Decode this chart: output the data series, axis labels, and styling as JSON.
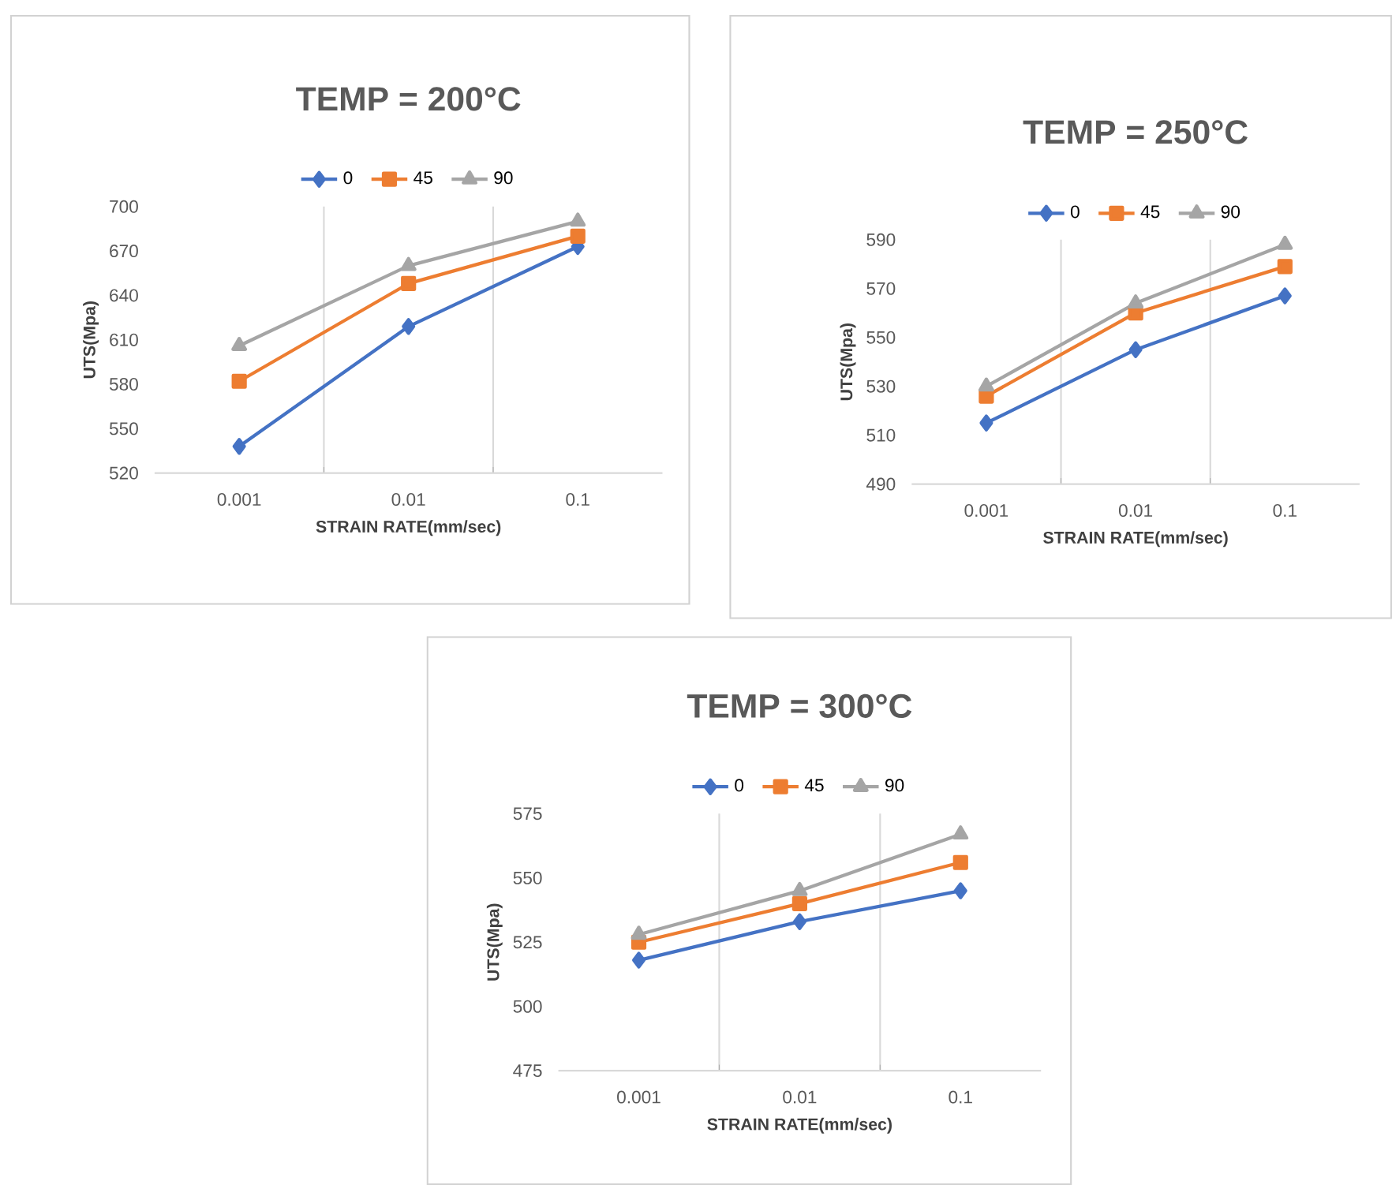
{
  "chart_data": [
    {
      "type": "line",
      "title": "TEMP = 200°C",
      "xlabel": "STRAIN RATE(mm/sec)",
      "ylabel": "UTS(Mpa)",
      "categories": [
        "0.001",
        "0.01",
        "0.1"
      ],
      "ylim": [
        520,
        700
      ],
      "yticks": [
        520,
        550,
        580,
        610,
        640,
        670,
        700
      ],
      "grid": "x",
      "legend": "top",
      "line_style": "solid",
      "series": [
        {
          "name": "0",
          "color": "#4472c4",
          "marker": "diamond",
          "values": [
            538,
            619,
            673
          ]
        },
        {
          "name": "45",
          "color": "#ed7d31",
          "marker": "square",
          "values": [
            582,
            648,
            680
          ]
        },
        {
          "name": "90",
          "color": "#a5a5a5",
          "marker": "triangle",
          "values": [
            606,
            660,
            690
          ]
        }
      ]
    },
    {
      "type": "line",
      "title": "TEMP = 250°C",
      "xlabel": "STRAIN RATE(mm/sec)",
      "ylabel": "UTS(Mpa)",
      "categories": [
        "0.001",
        "0.01",
        "0.1"
      ],
      "ylim": [
        490,
        590
      ],
      "yticks": [
        490,
        510,
        530,
        550,
        570,
        590
      ],
      "grid": "x",
      "legend": "top",
      "line_style": "solid",
      "series": [
        {
          "name": "0",
          "color": "#4472c4",
          "marker": "diamond",
          "values": [
            515,
            545,
            567
          ]
        },
        {
          "name": "45",
          "color": "#ed7d31",
          "marker": "square",
          "values": [
            526,
            560,
            579
          ]
        },
        {
          "name": "90",
          "color": "#a5a5a5",
          "marker": "triangle",
          "values": [
            530,
            564,
            588
          ]
        }
      ]
    },
    {
      "type": "line",
      "title": "TEMP = 300°C",
      "xlabel": "STRAIN RATE(mm/sec)",
      "ylabel": "UTS(Mpa)",
      "categories": [
        "0.001",
        "0.01",
        "0.1"
      ],
      "ylim": [
        475,
        575
      ],
      "yticks": [
        475,
        500,
        525,
        550,
        575
      ],
      "grid": "x",
      "legend": "top",
      "line_style": "solid",
      "series": [
        {
          "name": "0",
          "color": "#4472c4",
          "marker": "diamond",
          "values": [
            518,
            533,
            545
          ]
        },
        {
          "name": "45",
          "color": "#ed7d31",
          "marker": "square",
          "values": [
            525,
            540,
            556
          ]
        },
        {
          "name": "90",
          "color": "#a5a5a5",
          "marker": "triangle",
          "values": [
            528,
            545,
            567
          ]
        }
      ]
    }
  ]
}
